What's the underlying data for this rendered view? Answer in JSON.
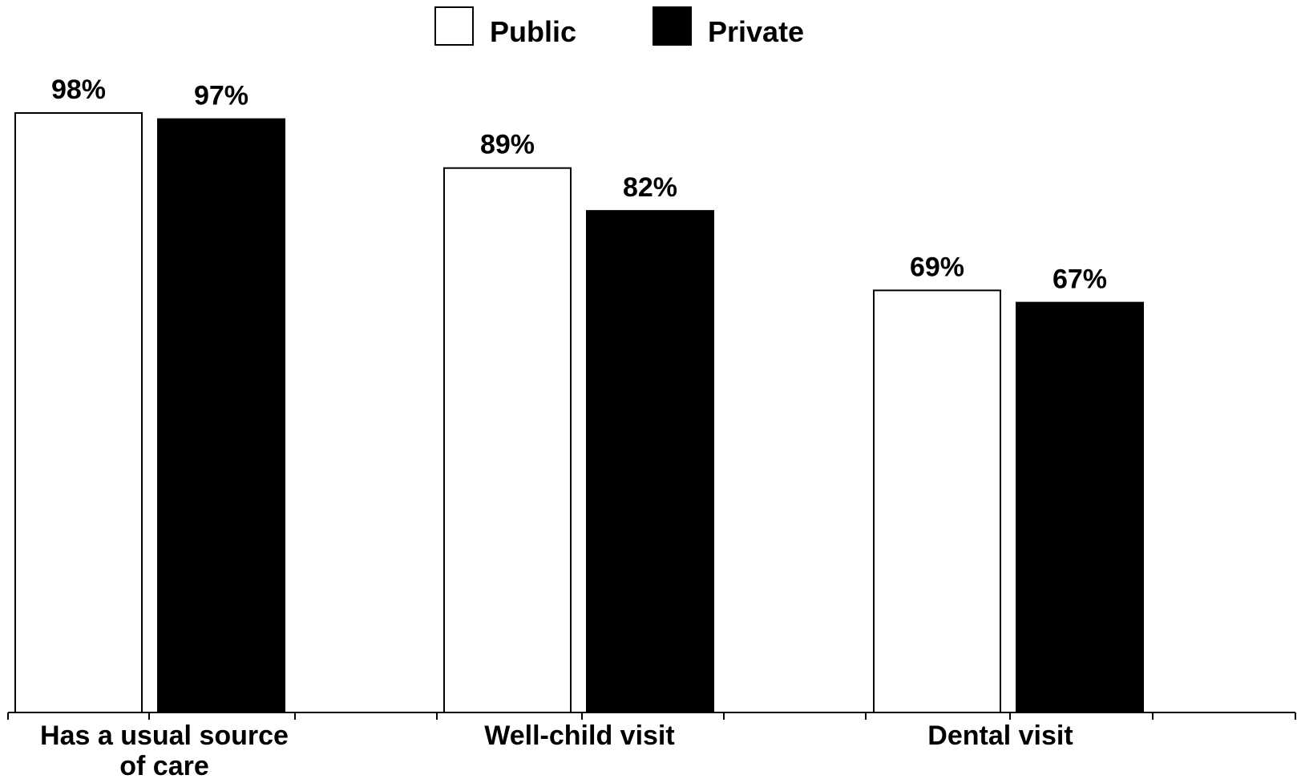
{
  "chart_data": {
    "type": "bar",
    "categories": [
      [
        "Has a usual source",
        "of care"
      ],
      [
        "Well-child visit"
      ],
      [
        "Dental visit"
      ]
    ],
    "series": [
      {
        "name": "Public",
        "color": "#ffffff",
        "stroke": "#000000",
        "values": [
          98,
          89,
          69
        ],
        "labels": [
          "98%",
          "89%",
          "69%"
        ]
      },
      {
        "name": "Private",
        "color": "#000000",
        "stroke": "#000000",
        "values": [
          97,
          82,
          67
        ],
        "labels": [
          "97%",
          "82%",
          "67%"
        ]
      }
    ],
    "ylim": [
      0,
      100
    ],
    "unit": "%",
    "grid": false,
    "legend_position": "top-center"
  }
}
